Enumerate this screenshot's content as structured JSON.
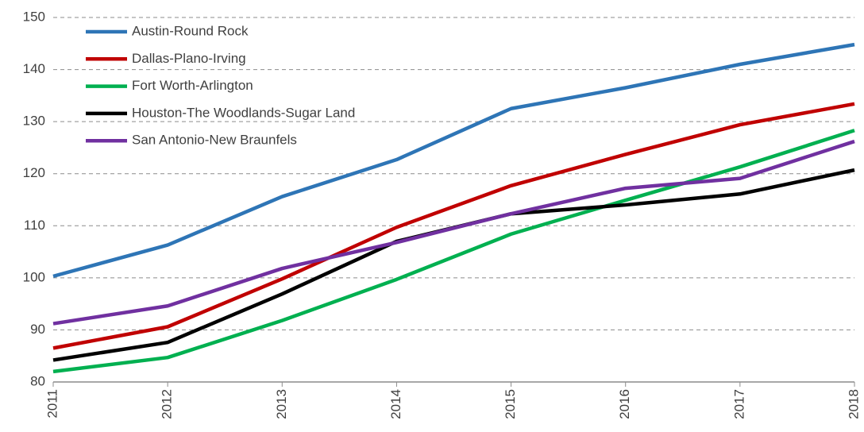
{
  "chart_data": {
    "type": "line",
    "categories": [
      "2011",
      "2012",
      "2013",
      "2014",
      "2015",
      "2016",
      "2017",
      "2018"
    ],
    "series": [
      {
        "name": "Austin-Round Rock",
        "color": "#2e75b6",
        "values": [
          100.3,
          106.3,
          115.6,
          122.7,
          132.5,
          136.5,
          141.0,
          144.8
        ]
      },
      {
        "name": "Dallas-Plano-Irving",
        "color": "#c00000",
        "values": [
          86.5,
          90.6,
          99.8,
          109.7,
          117.7,
          123.7,
          129.4,
          133.4
        ]
      },
      {
        "name": "Fort Worth-Arlington",
        "color": "#00b050",
        "values": [
          82.0,
          84.7,
          91.8,
          99.7,
          108.4,
          114.9,
          121.3,
          128.3
        ]
      },
      {
        "name": "Houston-The Woodlands-Sugar Land",
        "color": "#000000",
        "values": [
          84.2,
          87.6,
          96.9,
          107.0,
          112.3,
          114.0,
          116.1,
          120.7
        ]
      },
      {
        "name": "San Antonio-New Braunfels",
        "color": "#7030a0",
        "values": [
          91.2,
          94.6,
          101.8,
          106.8,
          112.3,
          117.2,
          119.1,
          126.2
        ]
      }
    ],
    "ylim": [
      80,
      150
    ],
    "yticks": [
      80,
      90,
      100,
      110,
      120,
      130,
      140,
      150
    ],
    "grid": true,
    "legend": "top-left"
  }
}
